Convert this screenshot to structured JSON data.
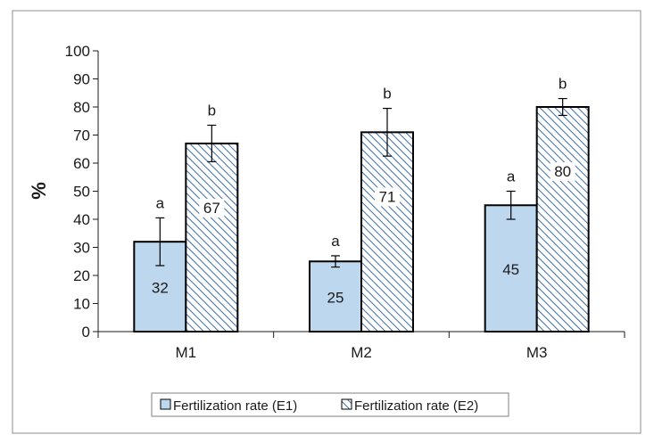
{
  "chart_data": {
    "type": "bar",
    "categories": [
      "M1",
      "M2",
      "M3"
    ],
    "ylabel": "%",
    "ylim": [
      0,
      100
    ],
    "yticks": [
      0,
      10,
      20,
      30,
      40,
      50,
      60,
      70,
      80,
      90,
      100
    ],
    "grid": false,
    "legend_position": "bottom",
    "series": [
      {
        "name": "Fertilization rate (E1)",
        "values": [
          32,
          25,
          45
        ],
        "error": [
          8.5,
          2,
          5
        ],
        "significance": [
          "a",
          "a",
          "a"
        ],
        "color": "#bdd7ee",
        "pattern": "solid"
      },
      {
        "name": "Fertilization rate (E2)",
        "values": [
          67,
          71,
          80
        ],
        "error": [
          6.5,
          8.5,
          3
        ],
        "significance": [
          "b",
          "b",
          "b"
        ],
        "color": "#bdd7ee",
        "pattern": "diagonal-hatch"
      }
    ]
  }
}
